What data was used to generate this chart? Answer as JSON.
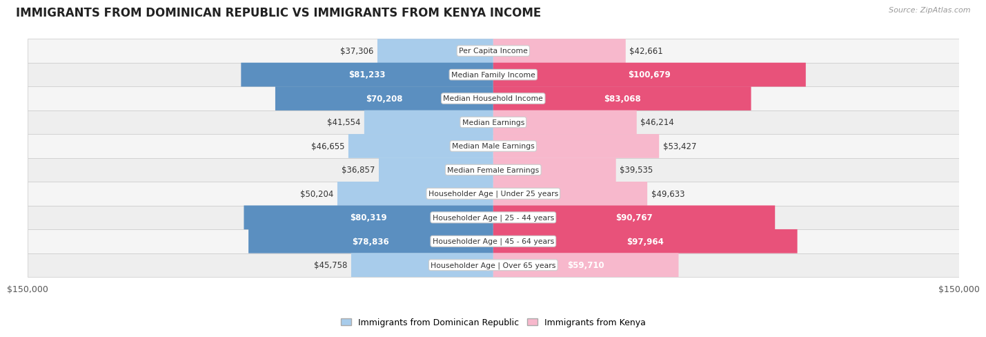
{
  "title": "IMMIGRANTS FROM DOMINICAN REPUBLIC VS IMMIGRANTS FROM KENYA INCOME",
  "source": "Source: ZipAtlas.com",
  "categories": [
    "Per Capita Income",
    "Median Family Income",
    "Median Household Income",
    "Median Earnings",
    "Median Male Earnings",
    "Median Female Earnings",
    "Householder Age | Under 25 years",
    "Householder Age | 25 - 44 years",
    "Householder Age | 45 - 64 years",
    "Householder Age | Over 65 years"
  ],
  "dominican": [
    37306,
    81233,
    70208,
    41554,
    46655,
    36857,
    50204,
    80319,
    78836,
    45758
  ],
  "kenya": [
    42661,
    100679,
    83068,
    46214,
    53427,
    39535,
    49633,
    90767,
    97964,
    59710
  ],
  "dominican_labels": [
    "$37,306",
    "$81,233",
    "$70,208",
    "$41,554",
    "$46,655",
    "$36,857",
    "$50,204",
    "$80,319",
    "$78,836",
    "$45,758"
  ],
  "kenya_labels": [
    "$42,661",
    "$100,679",
    "$83,068",
    "$46,214",
    "$53,427",
    "$39,535",
    "$49,633",
    "$90,767",
    "$97,964",
    "$59,710"
  ],
  "dominican_color_light": "#a8cceb",
  "dominican_color_dark": "#5b8fc0",
  "kenya_color_light": "#f7b8cc",
  "kenya_color_dark": "#e8527a",
  "max_value": 150000,
  "bar_height": 0.72,
  "title_fontsize": 12,
  "label_fontsize": 8.5,
  "cat_fontsize": 7.8,
  "legend_label_dr": "Immigrants from Dominican Republic",
  "legend_label_k": "Immigrants from Kenya",
  "dark_threshold": 60000,
  "row_colors": [
    "#f5f5f5",
    "#eeeeee"
  ]
}
